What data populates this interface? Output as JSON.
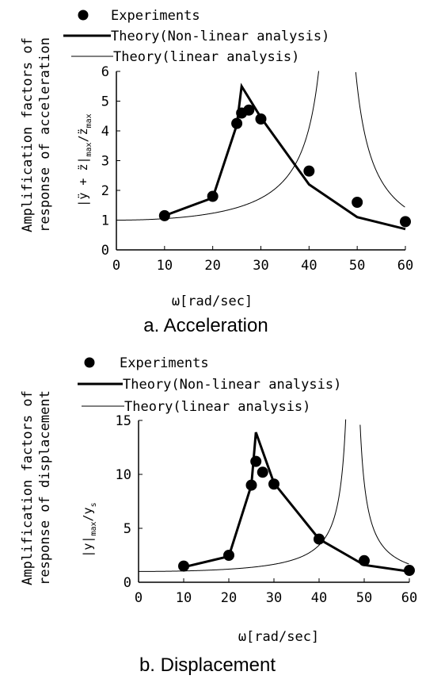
{
  "colors": {
    "line": "#000000",
    "background": "#ffffff"
  },
  "chart_data": [
    {
      "type": "line",
      "caption": "a. Acceleration",
      "xlabel": "ω[rad/sec]",
      "ylabel_lines": [
        "Amplification factors of",
        "response of acceleration"
      ],
      "ylabel_formula": {
        "main": "|ÿ + z̈|",
        "sub1": "max",
        "slash": "/z̈",
        "sub2": "max"
      },
      "xlim": [
        0,
        60
      ],
      "ylim": [
        0,
        6
      ],
      "x_ticks": [
        0,
        10,
        20,
        30,
        40,
        50,
        60
      ],
      "y_ticks": [
        0,
        1,
        2,
        3,
        4,
        5,
        6
      ],
      "legend": [
        "Experiments",
        "Theory(Non-linear analysis)",
        "Theory(linear analysis)"
      ],
      "grid": false,
      "series": [
        {
          "name": "Experiments",
          "kind": "points",
          "x": [
            10,
            20,
            25,
            26,
            27.5,
            30,
            40,
            50,
            60
          ],
          "y": [
            1.15,
            1.8,
            4.25,
            4.6,
            4.7,
            4.4,
            2.65,
            1.6,
            0.95
          ]
        },
        {
          "name": "Theory(Non-linear analysis)",
          "kind": "thick-line",
          "x": [
            10,
            20,
            25,
            26,
            30,
            40,
            50,
            60
          ],
          "y": [
            1.15,
            1.75,
            4.2,
            5.5,
            4.45,
            2.2,
            1.1,
            0.7
          ]
        },
        {
          "name": "Theory(linear analysis)",
          "kind": "thin-curve",
          "resonance_x": 46,
          "linear_peak": true
        }
      ]
    },
    {
      "type": "line",
      "caption": "b. Displacement",
      "xlabel": "ω[rad/sec]",
      "ylabel_lines": [
        "Amplification factors of",
        "response of displacement"
      ],
      "ylabel_formula": {
        "main": "|y|",
        "sub1": "max",
        "slash": "/y",
        "sub2": "s"
      },
      "xlim": [
        0,
        60
      ],
      "ylim": [
        0,
        15
      ],
      "x_ticks": [
        0,
        10,
        20,
        30,
        40,
        50,
        60
      ],
      "y_ticks": [
        0,
        5,
        10,
        15
      ],
      "legend": [
        "Experiments",
        "Theory(Non-linear analysis)",
        "Theory(linear analysis)"
      ],
      "grid": false,
      "series": [
        {
          "name": "Experiments",
          "kind": "points",
          "x": [
            10,
            20,
            25,
            26,
            27.5,
            30,
            40,
            50,
            60
          ],
          "y": [
            1.5,
            2.5,
            9.0,
            11.2,
            10.2,
            9.1,
            4.0,
            2.0,
            1.1
          ]
        },
        {
          "name": "Theory(Non-linear analysis)",
          "kind": "thick-line",
          "x": [
            10,
            20,
            25,
            26,
            30,
            40,
            50,
            60
          ],
          "y": [
            1.4,
            2.4,
            9.0,
            13.9,
            9.2,
            4.0,
            1.6,
            1.0
          ]
        },
        {
          "name": "Theory(linear analysis)",
          "kind": "thin-curve",
          "resonance_x": 47.5,
          "linear_peak": true
        }
      ]
    }
  ]
}
